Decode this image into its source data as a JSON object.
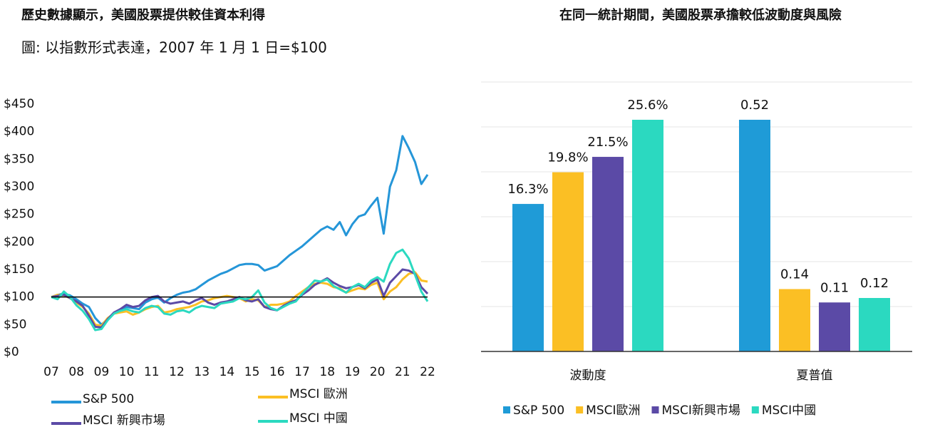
{
  "chart_data": [
    {
      "type": "line",
      "title": "歷史數據顯示，美國股票提供較佳資本利得",
      "subtitle": "圖: 以指數形式表達，2007 年 1 月 1 日=$100",
      "x": [
        2007,
        2007.25,
        2007.5,
        2007.75,
        2008,
        2008.25,
        2008.5,
        2008.75,
        2009,
        2009.25,
        2009.5,
        2009.75,
        2010,
        2010.25,
        2010.5,
        2010.75,
        2011,
        2011.25,
        2011.5,
        2011.75,
        2012,
        2012.25,
        2012.5,
        2012.75,
        2013,
        2013.25,
        2013.5,
        2013.75,
        2014,
        2014.25,
        2014.5,
        2014.75,
        2015,
        2015.25,
        2015.5,
        2015.75,
        2016,
        2016.25,
        2016.5,
        2016.75,
        2017,
        2017.25,
        2017.5,
        2017.75,
        2018,
        2018.25,
        2018.5,
        2018.75,
        2019,
        2019.25,
        2019.5,
        2019.75,
        2020,
        2020.25,
        2020.5,
        2020.75,
        2021,
        2021.25,
        2021.5,
        2021.75,
        2022
      ],
      "xlim": [
        2007,
        2022
      ],
      "xticks": [
        {
          "value": 2007,
          "label": "07"
        },
        {
          "value": 2008,
          "label": "08"
        },
        {
          "value": 2009,
          "label": "09"
        },
        {
          "value": 2010,
          "label": "10"
        },
        {
          "value": 2011,
          "label": "11"
        },
        {
          "value": 2012,
          "label": "12"
        },
        {
          "value": 2013,
          "label": "13"
        },
        {
          "value": 2014,
          "label": "14"
        },
        {
          "value": 2015,
          "label": "15"
        },
        {
          "value": 2016,
          "label": "16"
        },
        {
          "value": 2017,
          "label": "17"
        },
        {
          "value": 2018,
          "label": "18"
        },
        {
          "value": 2019,
          "label": "19"
        },
        {
          "value": 2020,
          "label": "20"
        },
        {
          "value": 2021,
          "label": "21"
        },
        {
          "value": 2022,
          "label": "22"
        }
      ],
      "ylim": [
        0,
        450
      ],
      "yticks": [
        {
          "value": 0,
          "label": "$0"
        },
        {
          "value": 50,
          "label": "$50"
        },
        {
          "value": 100,
          "label": "$100"
        },
        {
          "value": 150,
          "label": "$150"
        },
        {
          "value": 200,
          "label": "$200"
        },
        {
          "value": 250,
          "label": "$250"
        },
        {
          "value": 300,
          "label": "$300"
        },
        {
          "value": 350,
          "label": "$350"
        },
        {
          "value": 400,
          "label": "$400"
        },
        {
          "value": 450,
          "label": "$450"
        }
      ],
      "reference_line": 100,
      "series": [
        {
          "name": "S&P 500",
          "color": "#2596d8",
          "values": [
            100,
            104,
            106,
            103,
            96,
            88,
            82,
            62,
            50,
            60,
            70,
            78,
            82,
            80,
            78,
            90,
            96,
            99,
            90,
            98,
            104,
            108,
            110,
            114,
            122,
            130,
            136,
            142,
            146,
            152,
            158,
            160,
            160,
            158,
            148,
            152,
            156,
            166,
            176,
            184,
            192,
            202,
            212,
            222,
            228,
            222,
            236,
            212,
            232,
            246,
            250,
            266,
            280,
            215,
            300,
            330,
            392,
            370,
            345,
            305,
            322
          ]
        },
        {
          "name": "MSCI 歐洲",
          "color": "#fbbf24",
          "values": [
            100,
            104,
            103,
            98,
            90,
            82,
            70,
            50,
            48,
            62,
            70,
            72,
            74,
            68,
            72,
            78,
            82,
            84,
            72,
            74,
            78,
            80,
            82,
            86,
            92,
            94,
            98,
            100,
            102,
            100,
            98,
            92,
            96,
            94,
            82,
            86,
            86,
            88,
            92,
            102,
            110,
            118,
            124,
            126,
            124,
            118,
            116,
            108,
            112,
            116,
            114,
            122,
            126,
            96,
            110,
            118,
            132,
            142,
            145,
            130,
            128
          ]
        },
        {
          "name": "MSCI 新興市場",
          "color": "#5b4aa6",
          "values": [
            100,
            102,
            104,
            98,
            92,
            84,
            66,
            46,
            45,
            60,
            72,
            78,
            86,
            82,
            84,
            94,
            100,
            102,
            92,
            88,
            90,
            92,
            88,
            94,
            98,
            90,
            86,
            90,
            92,
            96,
            100,
            94,
            92,
            96,
            82,
            78,
            76,
            84,
            90,
            94,
            104,
            112,
            122,
            128,
            134,
            126,
            120,
            116,
            118,
            122,
            116,
            126,
            132,
            102,
            126,
            138,
            150,
            148,
            142,
            118,
            106
          ]
        },
        {
          "name": "MSCI 中國",
          "color": "#2bd9c0",
          "values": [
            100,
            96,
            110,
            100,
            85,
            75,
            60,
            40,
            42,
            58,
            70,
            75,
            78,
            74,
            72,
            80,
            84,
            82,
            70,
            68,
            74,
            76,
            72,
            80,
            84,
            82,
            80,
            88,
            90,
            92,
            98,
            96,
            100,
            112,
            90,
            80,
            76,
            82,
            88,
            92,
            106,
            118,
            130,
            128,
            132,
            120,
            114,
            108,
            118,
            124,
            118,
            130,
            136,
            128,
            160,
            180,
            186,
            170,
            140,
            110,
            92
          ]
        }
      ]
    },
    {
      "type": "bar",
      "title": "在同一統計期間，美國股票承擔較低波動度與風險",
      "categories": [
        "波動度",
        "夏普值"
      ],
      "series": [
        {
          "name": "S&P 500",
          "color": "#1f9bd7",
          "values": [
            16.3,
            0.52
          ],
          "value_labels": [
            "16.3%",
            "0.52"
          ]
        },
        {
          "name": "MSCI歐洲",
          "color": "#fbbf24",
          "values": [
            19.8,
            0.14
          ],
          "value_labels": [
            "19.8%",
            "0.14"
          ]
        },
        {
          "name": "MSCI新興市場",
          "color": "#5b4aa6",
          "values": [
            21.5,
            0.11
          ],
          "value_labels": [
            "21.5%",
            "0.11"
          ]
        },
        {
          "name": "MSCI中國",
          "color": "#2bd9c0",
          "values": [
            25.6,
            0.12
          ],
          "value_labels": [
            "25.6%",
            "0.12"
          ]
        }
      ]
    }
  ]
}
